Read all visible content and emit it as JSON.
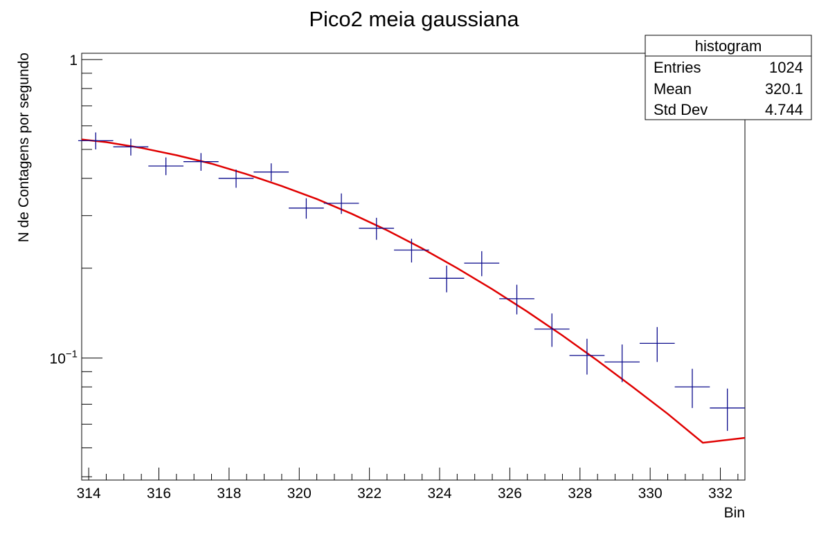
{
  "chart_data": {
    "type": "scatter",
    "title": "Pico2 meia gaussiana",
    "xlabel": "Bin",
    "ylabel": "N de Contagens por segundo",
    "x_ticks": [
      314,
      316,
      318,
      320,
      322,
      324,
      326,
      328,
      330,
      332
    ],
    "y_ticks": [
      {
        "value": 1,
        "base": "1",
        "exponent": ""
      },
      {
        "value": 0.1,
        "base": "10",
        "exponent": "−1"
      }
    ],
    "xlim": [
      313.8,
      332.7
    ],
    "ylim": [
      0.039,
      1.05
    ],
    "y_scale": "log",
    "grid": false,
    "series": [
      {
        "kind": "points-with-errors",
        "color": "#0a0a8c",
        "points": [
          {
            "x": 314.2,
            "y": 0.535,
            "xerr": 0.5,
            "yerr": 0.035
          },
          {
            "x": 315.2,
            "y": 0.51,
            "xerr": 0.5,
            "yerr": 0.033
          },
          {
            "x": 316.2,
            "y": 0.44,
            "xerr": 0.5,
            "yerr": 0.03
          },
          {
            "x": 317.2,
            "y": 0.455,
            "xerr": 0.5,
            "yerr": 0.031
          },
          {
            "x": 318.2,
            "y": 0.4,
            "xerr": 0.5,
            "yerr": 0.028
          },
          {
            "x": 319.2,
            "y": 0.42,
            "xerr": 0.5,
            "yerr": 0.029
          },
          {
            "x": 320.2,
            "y": 0.318,
            "xerr": 0.5,
            "yerr": 0.025
          },
          {
            "x": 321.2,
            "y": 0.33,
            "xerr": 0.5,
            "yerr": 0.026
          },
          {
            "x": 322.2,
            "y": 0.272,
            "xerr": 0.5,
            "yerr": 0.023
          },
          {
            "x": 323.2,
            "y": 0.23,
            "xerr": 0.5,
            "yerr": 0.021
          },
          {
            "x": 324.2,
            "y": 0.185,
            "xerr": 0.5,
            "yerr": 0.019
          },
          {
            "x": 325.2,
            "y": 0.208,
            "xerr": 0.5,
            "yerr": 0.02
          },
          {
            "x": 326.2,
            "y": 0.158,
            "xerr": 0.5,
            "yerr": 0.018
          },
          {
            "x": 327.2,
            "y": 0.125,
            "xerr": 0.5,
            "yerr": 0.016
          },
          {
            "x": 328.2,
            "y": 0.102,
            "xerr": 0.5,
            "yerr": 0.014
          },
          {
            "x": 329.2,
            "y": 0.097,
            "xerr": 0.5,
            "yerr": 0.014
          },
          {
            "x": 330.2,
            "y": 0.112,
            "xerr": 0.5,
            "yerr": 0.015
          },
          {
            "x": 331.2,
            "y": 0.08,
            "xerr": 0.5,
            "yerr": 0.012
          },
          {
            "x": 332.2,
            "y": 0.068,
            "xerr": 0.5,
            "yerr": 0.011
          }
        ]
      },
      {
        "kind": "fit-curve",
        "color": "#e00000",
        "x": [
          313.8,
          314.5,
          315.5,
          316.5,
          317.5,
          318.5,
          319.5,
          320.5,
          321.5,
          322.5,
          323.5,
          324.5,
          325.5,
          326.5,
          327.5,
          328.5,
          329.5,
          330.5,
          331.5,
          332.7
        ],
        "y": [
          0.54,
          0.529,
          0.506,
          0.478,
          0.448,
          0.413,
          0.377,
          0.341,
          0.304,
          0.268,
          0.233,
          0.2,
          0.17,
          0.143,
          0.119,
          0.098,
          0.08,
          0.065,
          0.052,
          0.054
        ]
      }
    ],
    "stats_box": {
      "title": "histogram",
      "rows": [
        {
          "label": "Entries",
          "value": "1024"
        },
        {
          "label": "Mean",
          "value": "320.1"
        },
        {
          "label": "Std Dev",
          "value": "4.744"
        }
      ]
    }
  }
}
